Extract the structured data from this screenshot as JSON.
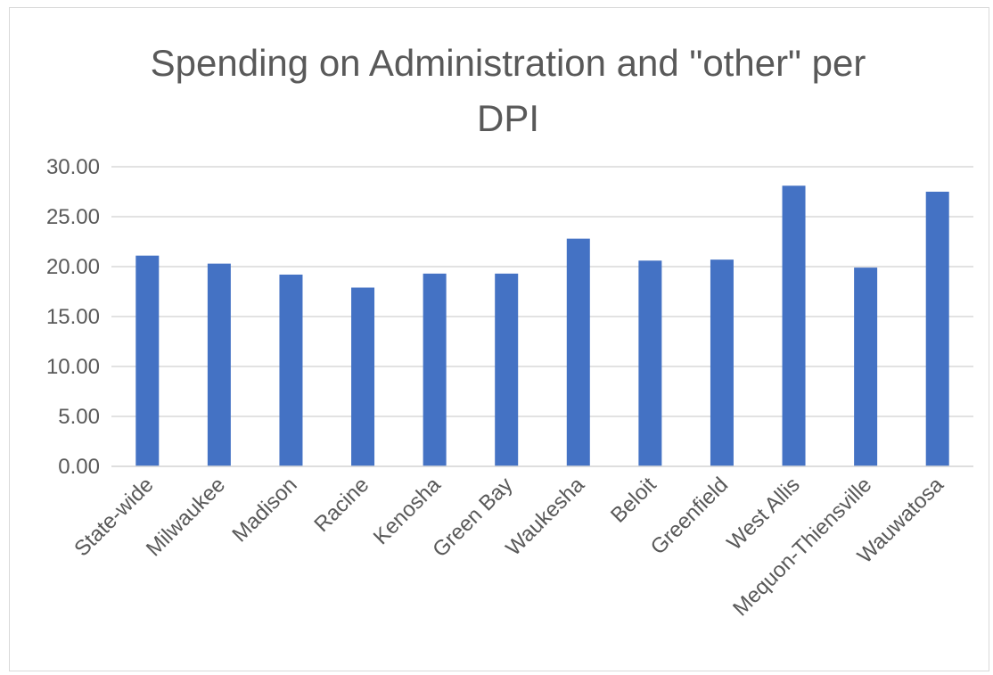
{
  "chart_data": {
    "type": "bar",
    "title": "Spending on Administration and \"other\" per DPI",
    "xlabel": "",
    "ylabel": "",
    "ylim": [
      0,
      30
    ],
    "yticks": [
      "0.00",
      "5.00",
      "10.00",
      "15.00",
      "20.00",
      "25.00",
      "30.00"
    ],
    "grid": true,
    "legend": "none",
    "categories": [
      "State-wide",
      "Milwaukee",
      "Madison",
      "Racine",
      "Kenosha",
      "Green Bay",
      "Waukesha",
      "Beloit",
      "Greenfield",
      "West Allis",
      "Mequon-Thiensville",
      "Wauwatosa"
    ],
    "values": [
      21.1,
      20.3,
      19.2,
      17.9,
      19.3,
      19.3,
      22.8,
      20.6,
      20.7,
      28.1,
      19.9,
      27.5
    ],
    "bar_color": "#4472c4",
    "grid_color": "#d9d9d9",
    "text_color": "#595959"
  }
}
